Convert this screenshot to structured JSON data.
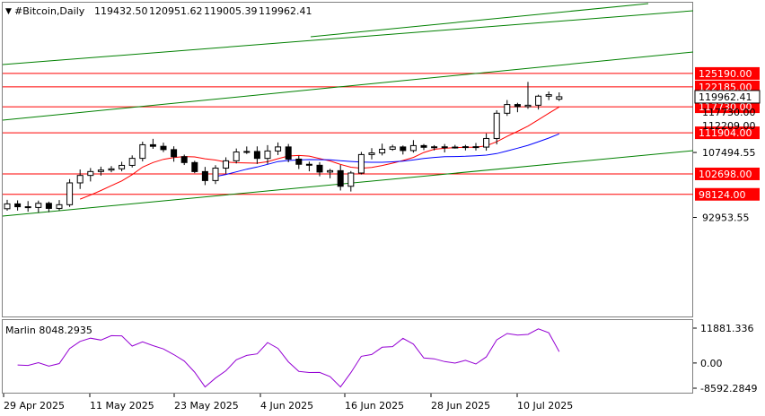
{
  "header": {
    "title": "#Bitcoin,Daily",
    "open": "119432.50",
    "high": "120951.62",
    "low": "119005.39",
    "close": "119962.41"
  },
  "chart_data": [
    {
      "type": "candlestick",
      "symbol": "#Bitcoin",
      "timeframe": "Daily",
      "ylim": [
        89500,
        127000
      ],
      "y_tick_labels": [
        "107494.55",
        "92953.55"
      ],
      "price_levels": [
        {
          "label": "125190.00",
          "value": 125190,
          "color": "#ff0000"
        },
        {
          "label": "122185.00",
          "value": 122185,
          "color": "#ff0000"
        },
        {
          "label": "117730.00",
          "value": 117730,
          "color": "#ff0000"
        },
        {
          "label": "111904.00",
          "value": 111904,
          "color": "#ff0000"
        },
        {
          "label": "102698.00",
          "value": 102698,
          "color": "#ff0000"
        },
        {
          "label": "98124.00",
          "value": 98124,
          "color": "#ff0000"
        }
      ],
      "current_price_label": "119962.41",
      "hidden_tick_labels": [
        "117730.00",
        "112209.00"
      ],
      "trend_channel_color": "#008000",
      "moving_average_colors": {
        "fast": "#ff0000",
        "slow": "#0000ff"
      },
      "bull_candle_fill": "#ffffff",
      "bear_candle_fill": "#000000",
      "grid": false
    },
    {
      "type": "line",
      "indicator": "Marlin",
      "title": "Marlin 8048.2935",
      "ylim": [
        -8592.2849,
        11881.336
      ],
      "y_tick_labels": [
        "11881.336",
        "0.00",
        "-8592.2849"
      ],
      "color": "#9400d3",
      "grid": false
    }
  ],
  "x_tick_labels": [
    "29 Apr 2025",
    "11 May 2025",
    "23 May 2025",
    "4 Jun 2025",
    "16 Jun 2025",
    "28 Jun 2025",
    "10 Jul 2025"
  ]
}
